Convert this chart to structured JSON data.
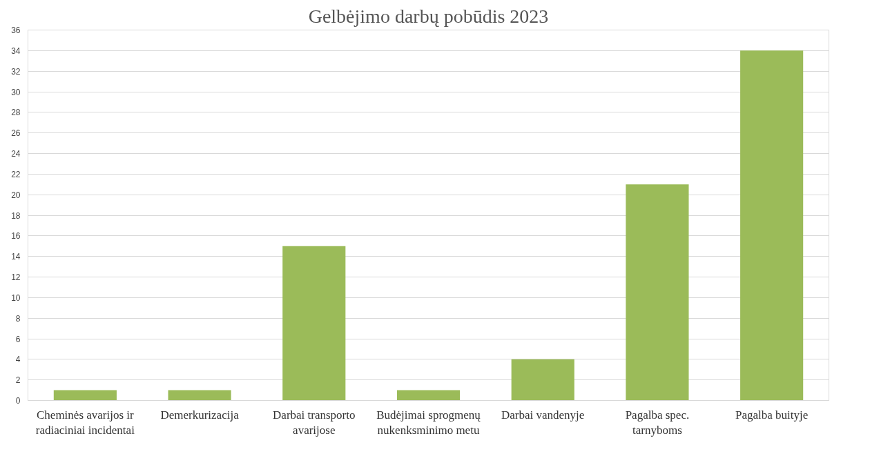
{
  "chart_data": {
    "type": "bar",
    "title": "Gelbėjimo darbų pobūdis 2023",
    "categories": [
      "Cheminės avarijos ir radiaciniai incidentai",
      "Demerkurizacija",
      "Darbai transporto avarijose",
      "Budėjimai sprogmenų nukenksminimo metu",
      "Darbai vandenyje",
      "Pagalba spec. tarnyboms",
      "Pagalba buityje"
    ],
    "values": [
      1,
      1,
      15,
      1,
      4,
      21,
      34
    ],
    "color": "#9bbb59",
    "ylim": [
      0,
      36
    ],
    "yticks": [
      0,
      2,
      4,
      6,
      8,
      10,
      12,
      14,
      16,
      18,
      20,
      22,
      24,
      26,
      28,
      30,
      32,
      34,
      36
    ],
    "grid": "y"
  }
}
